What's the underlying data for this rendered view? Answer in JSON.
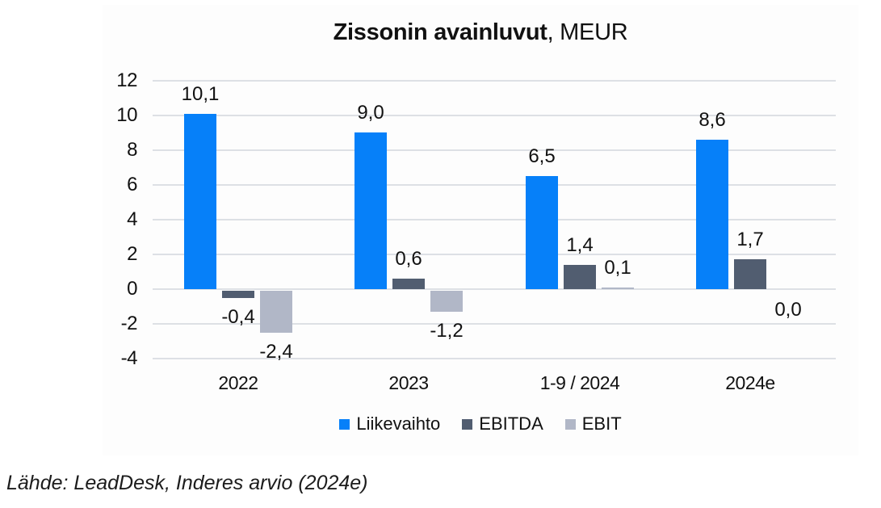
{
  "title": {
    "main": "Zissonin avainluvut",
    "suffix": ", MEUR"
  },
  "source_note": "Lähde: LeadDesk, Inderes arvio (2024e)",
  "colors": {
    "liikevaihto": "#0680f9",
    "ebitda": "#515d70",
    "ebit": "#b1b7c7",
    "gridline": "#dde0e5",
    "text": "#111111"
  },
  "chart_data": {
    "type": "bar",
    "title": "Zissonin avainluvut, MEUR",
    "categories": [
      "2022",
      "2023",
      "1-9 / 2024",
      "2024e"
    ],
    "series": [
      {
        "name": "Liikevaihto",
        "color": "#0680f9",
        "values": [
          10.1,
          9.0,
          6.5,
          8.6
        ],
        "labels": [
          "10,1",
          "9,0",
          "6,5",
          "8,6"
        ]
      },
      {
        "name": "EBITDA",
        "color": "#515d70",
        "values": [
          -0.4,
          0.6,
          1.4,
          1.7
        ],
        "labels": [
          "-0,4",
          "0,6",
          "1,4",
          "1,7"
        ]
      },
      {
        "name": "EBIT",
        "color": "#b1b7c7",
        "values": [
          -2.4,
          -1.2,
          0.1,
          0.0
        ],
        "labels": [
          "-2,4",
          "-1,2",
          "0,1",
          "0,0"
        ]
      }
    ],
    "y_ticks": [
      12,
      10,
      8,
      6,
      4,
      2,
      0,
      -2,
      -4
    ],
    "y_tick_labels": [
      "12",
      "10",
      "8",
      "6",
      "4",
      "2",
      "0",
      "-2",
      "-4"
    ],
    "ylim": [
      -4,
      12
    ],
    "xlabel": "",
    "ylabel": "",
    "grid": true,
    "legend_position": "bottom",
    "decimal_separator": "comma"
  }
}
